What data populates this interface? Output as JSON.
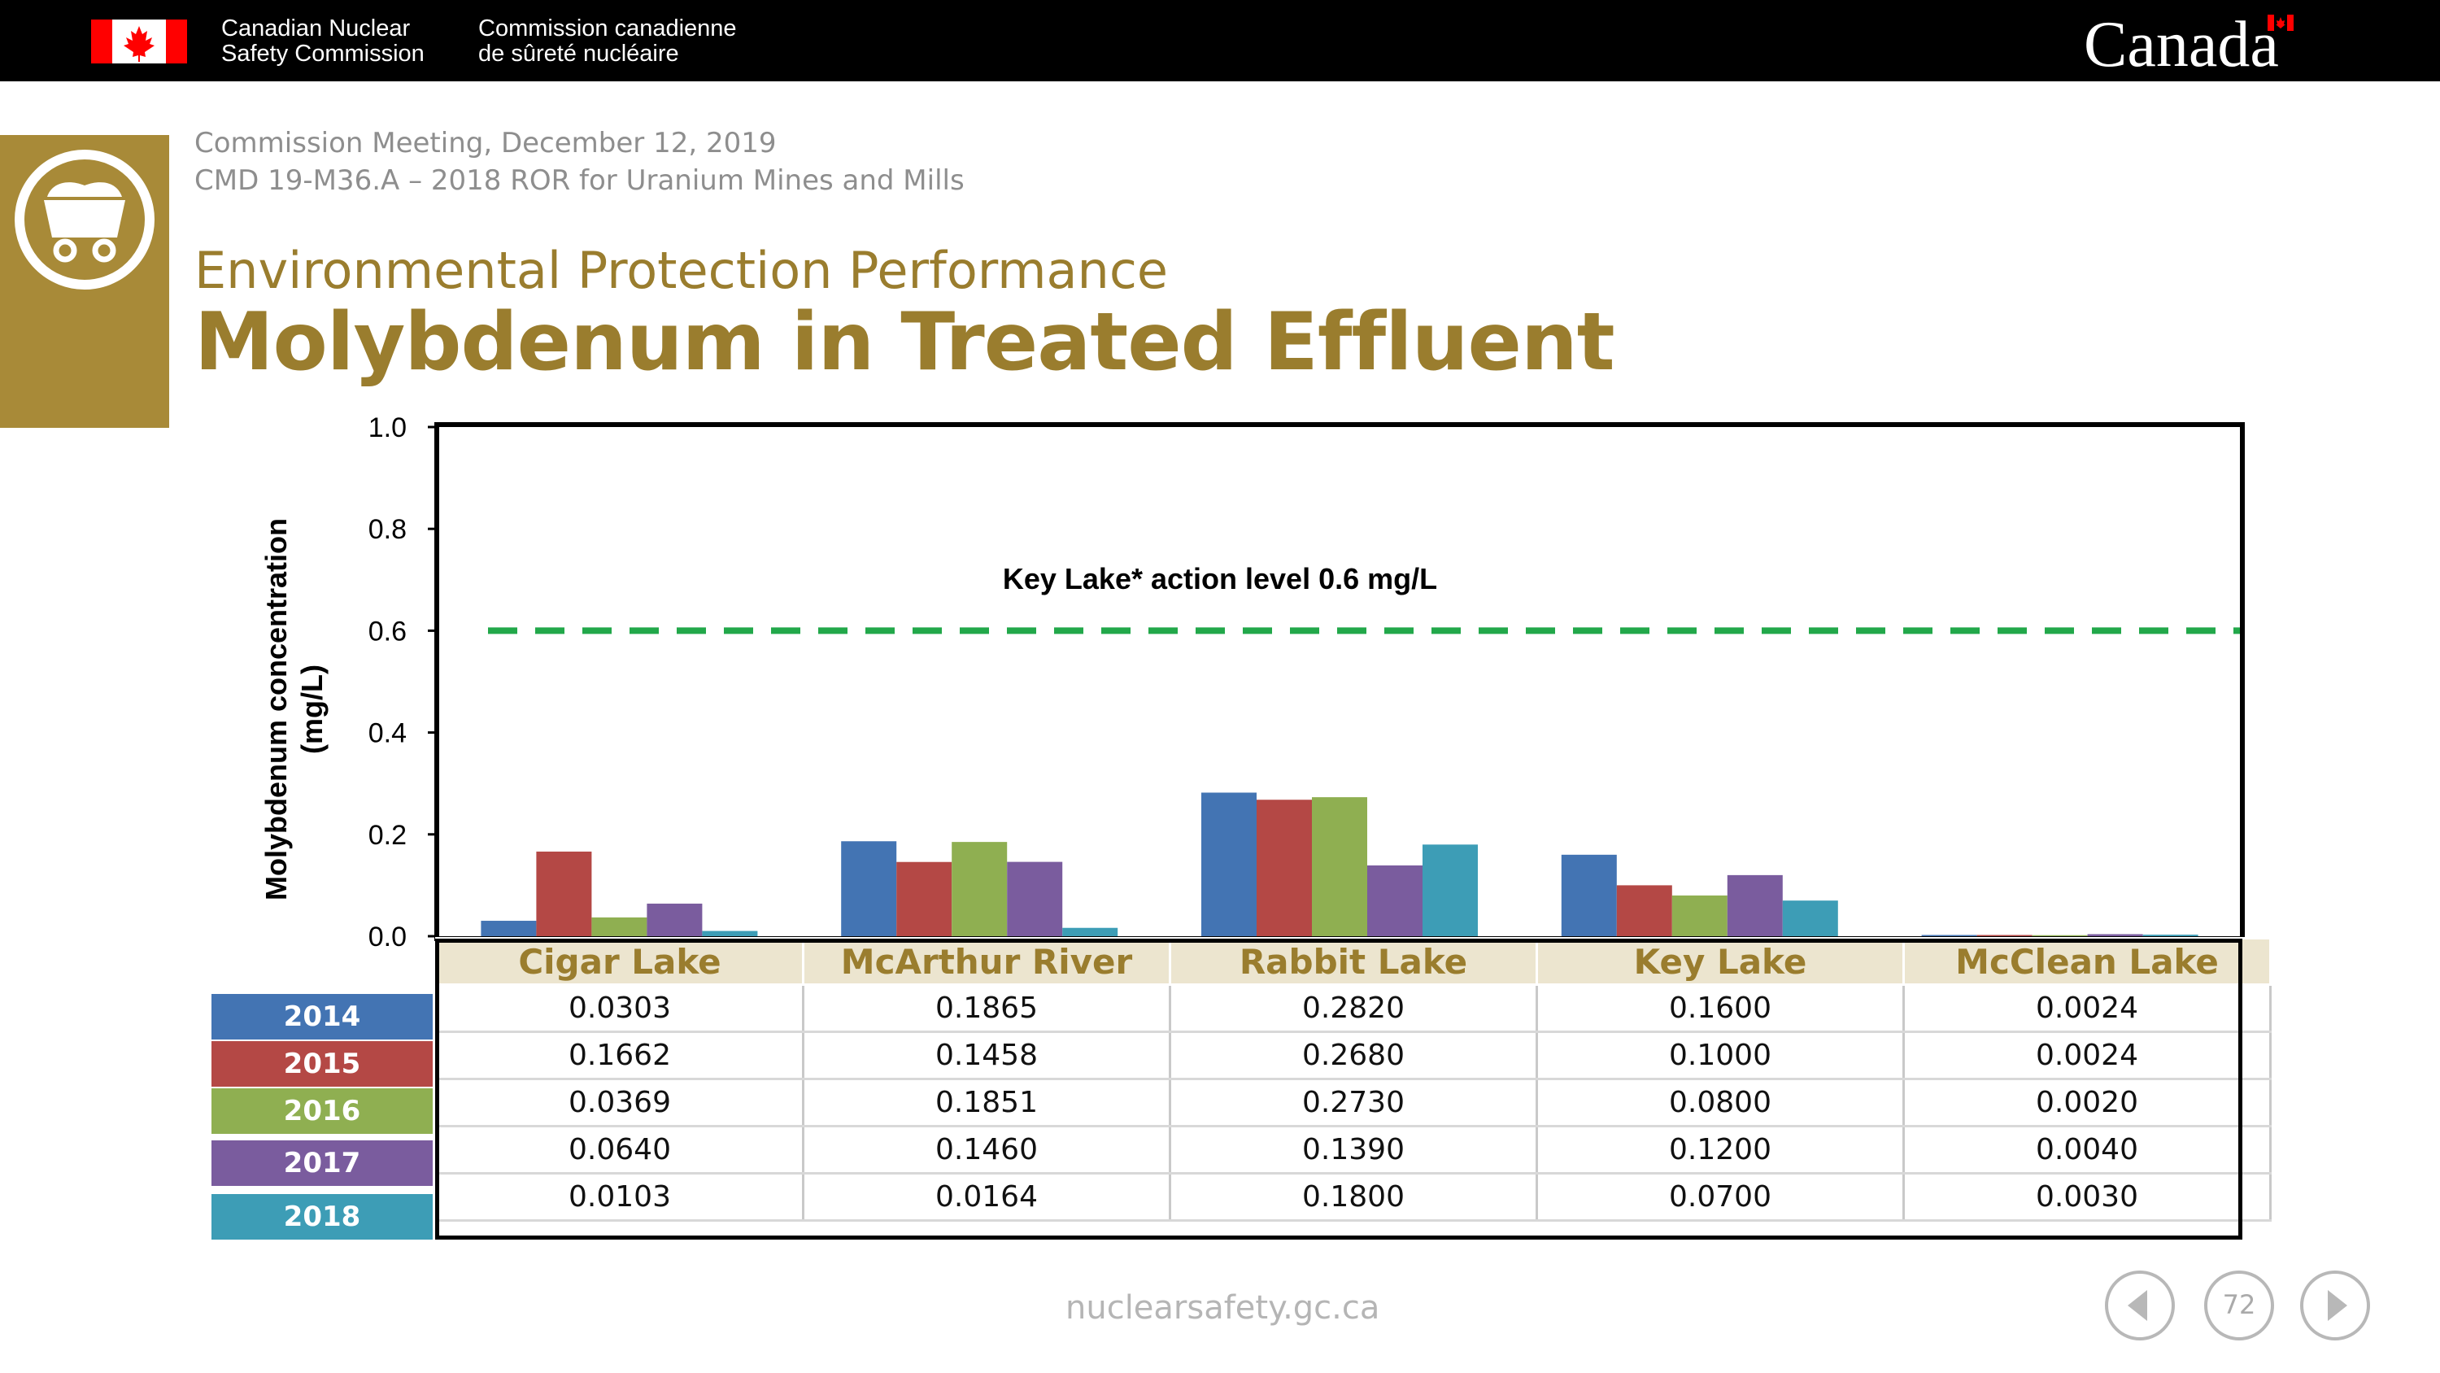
{
  "header": {
    "agency_en": "Canadian Nuclear\nSafety Commission",
    "agency_fr": "Commission canadienne\nde sûreté nucléaire",
    "wordmark": "Canada"
  },
  "meeting_line": "Commission Meeting, December 12, 2019",
  "cmd_line": "CMD 19-M36.A – 2018 ROR for Uranium Mines and Mills",
  "subtitle": "Environmental Protection Performance",
  "title": "Molybdenum in Treated Effluent",
  "icons": {
    "logo": "mine-cart-icon",
    "flag": "canada-flag-icon",
    "prev": "chevron-left-icon",
    "next": "chevron-right-icon"
  },
  "chart_data": {
    "type": "bar",
    "title": "",
    "xlabel": "",
    "ylabel": "Molybdenum concentration\n(mg/L)",
    "ylim": [
      0,
      1.0
    ],
    "yticks": [
      "0.0",
      "0.2",
      "0.4",
      "0.6",
      "0.8",
      "1.0"
    ],
    "categories": [
      "Cigar Lake",
      "McArthur River",
      "Rabbit Lake",
      "Key Lake",
      "McClean Lake"
    ],
    "series": [
      {
        "name": "2014",
        "color": "#4374b3",
        "values": [
          0.0303,
          0.1865,
          0.282,
          0.16,
          0.0024
        ],
        "labels": [
          "0.0303",
          "0.1865",
          "0.2820",
          "0.1600",
          "0.0024"
        ]
      },
      {
        "name": "2015",
        "color": "#b44845",
        "values": [
          0.1662,
          0.1458,
          0.268,
          0.1,
          0.0024
        ],
        "labels": [
          "0.1662",
          "0.1458",
          "0.2680",
          "0.1000",
          "0.0024"
        ]
      },
      {
        "name": "2016",
        "color": "#8faf51",
        "values": [
          0.0369,
          0.1851,
          0.273,
          0.08,
          0.002
        ],
        "labels": [
          "0.0369",
          "0.1851",
          "0.2730",
          "0.0800",
          "0.0020"
        ]
      },
      {
        "name": "2017",
        "color": "#7a5c9e",
        "values": [
          0.064,
          0.146,
          0.139,
          0.12,
          0.004
        ],
        "labels": [
          "0.0640",
          "0.1460",
          "0.1390",
          "0.1200",
          "0.0040"
        ]
      },
      {
        "name": "2018",
        "color": "#3d9db6",
        "values": [
          0.0103,
          0.0164,
          0.18,
          0.07,
          0.003
        ],
        "labels": [
          "0.0103",
          "0.0164",
          "0.1800",
          "0.0700",
          "0.0030"
        ]
      }
    ],
    "reference_line": {
      "value": 0.6,
      "label": "Key  Lake* action level 0.6 mg/L",
      "color": "#22a84a",
      "style": "dashed"
    },
    "grid": false,
    "legend": "data-table-below"
  },
  "footer": {
    "url": "nuclearsafety.gc.ca",
    "page": "72"
  }
}
